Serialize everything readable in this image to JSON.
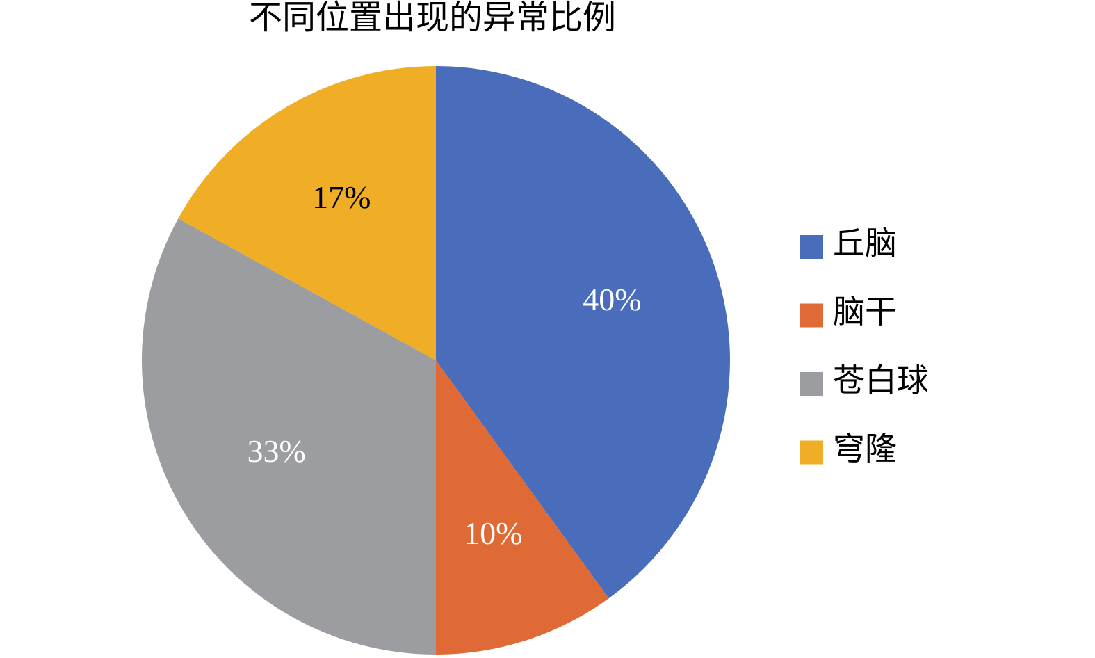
{
  "chart_data": {
    "type": "pie",
    "title": "不同位置出现的异常比例",
    "categories": [
      "丘脑",
      "脑干",
      "苍白球",
      "穹隆"
    ],
    "values": [
      40,
      10,
      33,
      17
    ],
    "value_labels": [
      "40%",
      "10%",
      "33%",
      "17%"
    ],
    "colors": [
      "#4a6dbb",
      "#e06a35",
      "#9c9da0",
      "#f0ad26"
    ],
    "legend": "right"
  }
}
